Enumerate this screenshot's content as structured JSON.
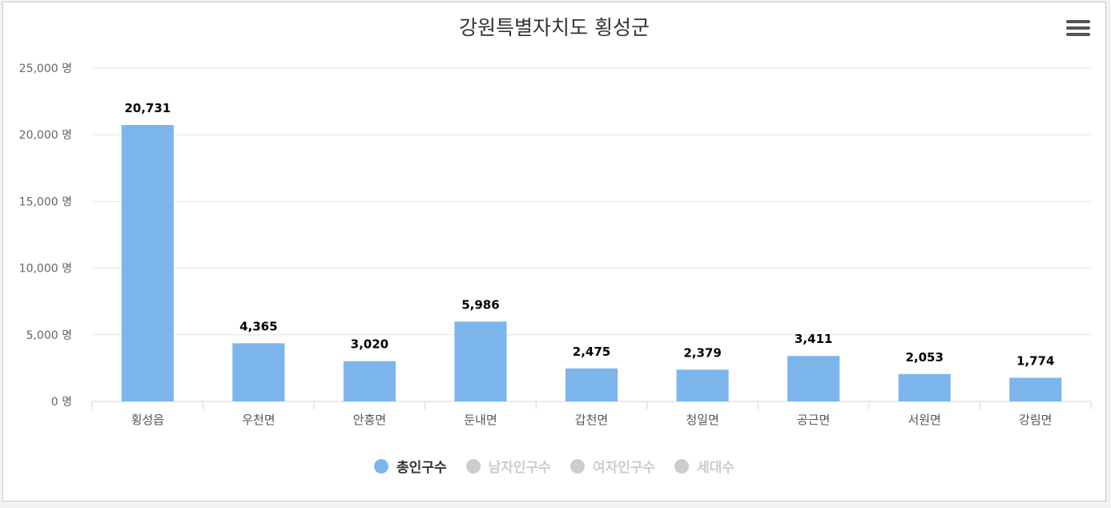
{
  "chart_data": {
    "type": "bar",
    "title": "강원특별자치도 횡성군",
    "categories": [
      "횡성읍",
      "우천면",
      "안흥면",
      "둔내면",
      "갑천면",
      "청일면",
      "공근면",
      "서원면",
      "강림면"
    ],
    "series": [
      {
        "name": "총인구수",
        "values": [
          20731,
          4365,
          3020,
          5986,
          2475,
          2379,
          3411,
          2053,
          1774
        ],
        "color": "#7cb5ec"
      }
    ],
    "data_labels": [
      "20,731",
      "4,365",
      "3,020",
      "5,986",
      "2,475",
      "2,379",
      "3,411",
      "2,053",
      "1,774"
    ],
    "y_ticks": [
      0,
      5000,
      10000,
      15000,
      20000,
      25000
    ],
    "y_tick_labels": [
      "0 명",
      "5,000 명",
      "10,000 명",
      "15,000 명",
      "20,000 명",
      "25,000 명"
    ],
    "ylim": [
      0,
      25000
    ],
    "grid": true,
    "legend_position": "bottom-center"
  },
  "legend": [
    {
      "label": "총인구수",
      "color": "#7cb5ec",
      "active": true
    },
    {
      "label": "남자인구수",
      "color": "#cccccc",
      "active": false
    },
    {
      "label": "여자인구수",
      "color": "#cccccc",
      "active": false
    },
    {
      "label": "세대수",
      "color": "#cccccc",
      "active": false
    }
  ],
  "menu_icon": "hamburger-menu-icon",
  "colors": {
    "bar": "#7cb5ec",
    "inactive": "#cccccc",
    "axis": "#ccd6eb",
    "grid": "#e6e6e6"
  }
}
